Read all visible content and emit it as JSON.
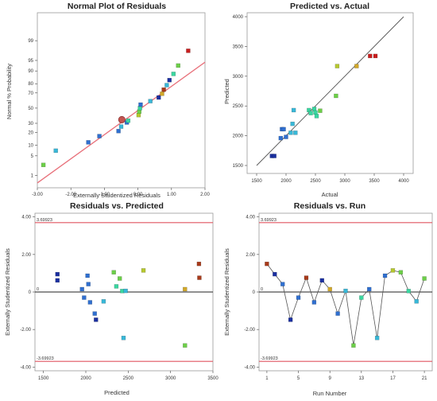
{
  "colors": {
    "frame": "#9a9a9a",
    "fit_line": "#e8707a",
    "limit_line": "#e05560",
    "zero_line": "#222222",
    "scale": [
      "#1a2fa0",
      "#2f6fd0",
      "#38b8d8",
      "#3ad6a0",
      "#6ccf48",
      "#b6c82e",
      "#d2a828",
      "#a83a1a",
      "#c81e1e"
    ]
  },
  "chart_data": [
    {
      "id": "normal-plot",
      "type": "scatter",
      "title": "Normal Plot of Residuals",
      "xlabel": "Externally Studentized Residuals",
      "ylabel": "Normal % Probability",
      "xlim": [
        -3.0,
        2.0
      ],
      "xticks": [
        "-3.00",
        "-2.00",
        "-1.00",
        "0.00",
        "1.00",
        "2.00"
      ],
      "yticks": [
        "1",
        "5",
        "10",
        "20",
        "30",
        "50",
        "70",
        "80",
        "90",
        "95",
        "99"
      ],
      "fit_line": {
        "x": [
          -3.2,
          2.2
        ],
        "p": [
          0.3,
          96.0
        ]
      },
      "highlighted_point": {
        "x": -0.48,
        "p": 34.5
      },
      "points": [
        {
          "x": -2.82,
          "p": 2.5,
          "c": "#6ccf48"
        },
        {
          "x": -2.45,
          "p": 7.1,
          "c": "#38b8d8"
        },
        {
          "x": -1.48,
          "p": 11.9,
          "c": "#2f6fd0"
        },
        {
          "x": -1.15,
          "p": 16.7,
          "c": "#2f6fd0"
        },
        {
          "x": -0.58,
          "p": 21.4,
          "c": "#2f6fd0"
        },
        {
          "x": -0.5,
          "p": 26.2,
          "c": "#38b8d8"
        },
        {
          "x": -0.33,
          "p": 31.0,
          "c": "#2f6fd0"
        },
        {
          "x": -0.29,
          "p": 33.3,
          "c": "#3ad6a0"
        },
        {
          "x": 0.02,
          "p": 40.5,
          "c": "#b6c82e"
        },
        {
          "x": 0.04,
          "p": 45.2,
          "c": "#6ccf48"
        },
        {
          "x": 0.06,
          "p": 50.0,
          "c": "#3ad6a0"
        },
        {
          "x": 0.08,
          "p": 54.8,
          "c": "#2f6fd0"
        },
        {
          "x": 0.37,
          "p": 59.5,
          "c": "#38b8d8"
        },
        {
          "x": 0.62,
          "p": 64.3,
          "c": "#1a2fa0"
        },
        {
          "x": 0.72,
          "p": 69.0,
          "c": "#d2a828"
        },
        {
          "x": 0.77,
          "p": 73.8,
          "c": "#a83a1a"
        },
        {
          "x": 0.86,
          "p": 78.6,
          "c": "#38b8d8"
        },
        {
          "x": 0.94,
          "p": 83.3,
          "c": "#1a2fa0"
        },
        {
          "x": 1.06,
          "p": 88.1,
          "c": "#3ad6a0"
        },
        {
          "x": 1.2,
          "p": 92.9,
          "c": "#6ccf48"
        },
        {
          "x": 1.5,
          "p": 97.6,
          "c": "#c81e1e"
        }
      ]
    },
    {
      "id": "predicted-vs-actual",
      "type": "scatter",
      "title": "Predicted vs. Actual",
      "xlabel": "Actual",
      "ylabel": "Predicted",
      "xlim": [
        1500,
        4000
      ],
      "ylim": [
        1500,
        4000
      ],
      "xticks": [
        "1500",
        "2000",
        "2500",
        "3000",
        "3500",
        "4000"
      ],
      "yticks": [
        "1500",
        "2000",
        "2500",
        "3000",
        "3500",
        "4000"
      ],
      "points": [
        {
          "x": 1760,
          "y": 1660,
          "c": "#1a2fa0"
        },
        {
          "x": 1800,
          "y": 1660,
          "c": "#1a2fa0"
        },
        {
          "x": 1910,
          "y": 1960,
          "c": "#2f6fd0"
        },
        {
          "x": 1930,
          "y": 2110,
          "c": "#2f6fd0"
        },
        {
          "x": 1960,
          "y": 2110,
          "c": "#2f6fd0"
        },
        {
          "x": 2000,
          "y": 1980,
          "c": "#2f6fd0"
        },
        {
          "x": 2080,
          "y": 2050,
          "c": "#38b8d8"
        },
        {
          "x": 2110,
          "y": 2200,
          "c": "#38b8d8"
        },
        {
          "x": 2130,
          "y": 2430,
          "c": "#38b8d8"
        },
        {
          "x": 2160,
          "y": 2050,
          "c": "#38b8d8"
        },
        {
          "x": 2390,
          "y": 2430,
          "c": "#3ad6a0"
        },
        {
          "x": 2420,
          "y": 2380,
          "c": "#3ad6a0"
        },
        {
          "x": 2480,
          "y": 2450,
          "c": "#3ad6a0"
        },
        {
          "x": 2500,
          "y": 2390,
          "c": "#3ad6a0"
        },
        {
          "x": 2520,
          "y": 2330,
          "c": "#3ad6a0"
        },
        {
          "x": 2580,
          "y": 2420,
          "c": "#6ccf48"
        },
        {
          "x": 2850,
          "y": 2670,
          "c": "#6ccf48"
        },
        {
          "x": 2870,
          "y": 3170,
          "c": "#b6c82e"
        },
        {
          "x": 3200,
          "y": 3170,
          "c": "#d2a828"
        },
        {
          "x": 3430,
          "y": 3340,
          "c": "#c81e1e"
        },
        {
          "x": 3520,
          "y": 3340,
          "c": "#c81e1e"
        }
      ]
    },
    {
      "id": "residuals-vs-predicted",
      "type": "scatter",
      "title": "Residuals vs. Predicted",
      "xlabel": "Predicted",
      "ylabel": "Externally Studentized Residuals",
      "xlim": [
        1400,
        3500
      ],
      "ylim": [
        -4.2,
        4.2
      ],
      "xticks": [
        "1500",
        "2000",
        "2500",
        "3000",
        "3500"
      ],
      "yticks": [
        "4.00",
        "2.00",
        "0",
        "-2.00",
        "-4.00"
      ],
      "limits": [
        3.69923,
        -3.69923
      ],
      "limit_labels": [
        "3.69923",
        "-3.69923"
      ],
      "points": [
        {
          "x": 1665,
          "y": 0.95,
          "c": "#1a2fa0"
        },
        {
          "x": 1665,
          "y": 0.62,
          "c": "#1a2fa0"
        },
        {
          "x": 1955,
          "y": 0.15,
          "c": "#2f6fd0"
        },
        {
          "x": 1980,
          "y": -0.3,
          "c": "#2f6fd0"
        },
        {
          "x": 2020,
          "y": 0.87,
          "c": "#2f6fd0"
        },
        {
          "x": 2030,
          "y": 0.42,
          "c": "#2f6fd0"
        },
        {
          "x": 2050,
          "y": -0.55,
          "c": "#2f6fd0"
        },
        {
          "x": 2105,
          "y": -1.15,
          "c": "#2f6fd0"
        },
        {
          "x": 2120,
          "y": -1.48,
          "c": "#1a2fa0"
        },
        {
          "x": 2210,
          "y": -0.5,
          "c": "#38b8d8"
        },
        {
          "x": 2330,
          "y": 1.05,
          "c": "#6ccf48"
        },
        {
          "x": 2360,
          "y": 0.3,
          "c": "#3ad6a0"
        },
        {
          "x": 2400,
          "y": 0.72,
          "c": "#6ccf48"
        },
        {
          "x": 2430,
          "y": 0.05,
          "c": "#3ad6a0"
        },
        {
          "x": 2445,
          "y": -2.45,
          "c": "#38b8d8"
        },
        {
          "x": 2470,
          "y": 0.06,
          "c": "#38b8d8"
        },
        {
          "x": 2680,
          "y": 1.15,
          "c": "#b6c82e"
        },
        {
          "x": 3170,
          "y": 0.15,
          "c": "#d2a828"
        },
        {
          "x": 3170,
          "y": -2.85,
          "c": "#6ccf48"
        },
        {
          "x": 3335,
          "y": 1.5,
          "c": "#a83a1a"
        },
        {
          "x": 3340,
          "y": 0.76,
          "c": "#a83a1a"
        }
      ]
    },
    {
      "id": "residuals-vs-run",
      "type": "line",
      "title": "Residuals vs. Run",
      "xlabel": "Run Number",
      "ylabel": "Externally Studentized Residuals",
      "xlim": [
        0,
        22
      ],
      "ylim": [
        -4.2,
        4.2
      ],
      "xticks": [
        "1",
        "5",
        "9",
        "13",
        "17",
        "21"
      ],
      "yticks": [
        "4.00",
        "2.00",
        "0",
        "-2.00",
        "-4.00"
      ],
      "limits": [
        3.69923,
        -3.69923
      ],
      "limit_labels": [
        "3.69923",
        "-3.69923"
      ],
      "points": [
        {
          "x": 1,
          "y": 1.5,
          "c": "#a83a1a"
        },
        {
          "x": 2,
          "y": 0.95,
          "c": "#1a2fa0"
        },
        {
          "x": 3,
          "y": 0.42,
          "c": "#2f6fd0"
        },
        {
          "x": 4,
          "y": -1.48,
          "c": "#1a2fa0"
        },
        {
          "x": 5,
          "y": -0.3,
          "c": "#2f6fd0"
        },
        {
          "x": 6,
          "y": 0.76,
          "c": "#a83a1a"
        },
        {
          "x": 7,
          "y": -0.55,
          "c": "#2f6fd0"
        },
        {
          "x": 8,
          "y": 0.62,
          "c": "#1a2fa0"
        },
        {
          "x": 9,
          "y": 0.15,
          "c": "#d2a828"
        },
        {
          "x": 10,
          "y": -1.15,
          "c": "#2f6fd0"
        },
        {
          "x": 11,
          "y": 0.06,
          "c": "#38b8d8"
        },
        {
          "x": 12,
          "y": -2.85,
          "c": "#6ccf48"
        },
        {
          "x": 13,
          "y": -0.3,
          "c": "#3ad6a0"
        },
        {
          "x": 14,
          "y": 0.15,
          "c": "#2f6fd0"
        },
        {
          "x": 15,
          "y": -2.45,
          "c": "#38b8d8"
        },
        {
          "x": 16,
          "y": 0.87,
          "c": "#2f6fd0"
        },
        {
          "x": 17,
          "y": 1.15,
          "c": "#b6c82e"
        },
        {
          "x": 18,
          "y": 1.05,
          "c": "#6ccf48"
        },
        {
          "x": 19,
          "y": 0.05,
          "c": "#3ad6a0"
        },
        {
          "x": 20,
          "y": -0.5,
          "c": "#38b8d8"
        },
        {
          "x": 21,
          "y": 0.72,
          "c": "#6ccf48"
        }
      ]
    }
  ]
}
